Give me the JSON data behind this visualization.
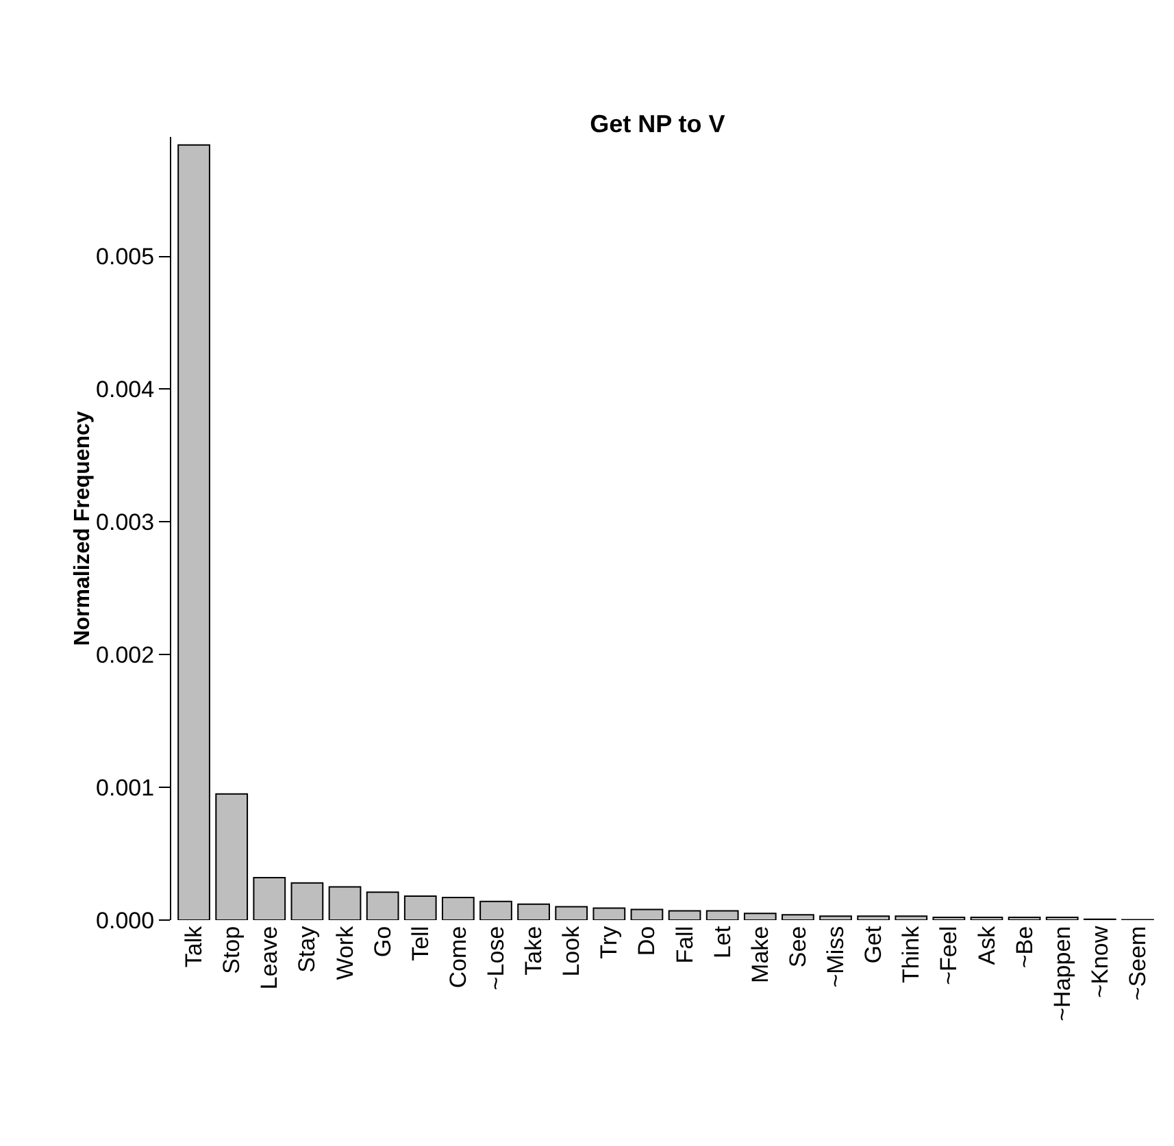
{
  "chart_data": {
    "type": "bar",
    "title": "Get NP to V",
    "ylabel": "Normalized Frequency",
    "categories": [
      "Talk",
      "Stop",
      "Leave",
      "Stay",
      "Work",
      "Go",
      "Tell",
      "Come",
      "~Lose",
      "Take",
      "Look",
      "Try",
      "Do",
      "Fall",
      "Let",
      "Make",
      "See",
      "~Miss",
      "Get",
      "Think",
      "~Feel",
      "Ask",
      "~Be",
      "~Happen",
      "~Know",
      "~Seem"
    ],
    "values": [
      0.00584,
      0.00095,
      0.00032,
      0.00028,
      0.00025,
      0.00021,
      0.00018,
      0.00017,
      0.00014,
      0.00012,
      0.0001,
      9e-05,
      8e-05,
      7e-05,
      7e-05,
      5e-05,
      4e-05,
      3e-05,
      3e-05,
      3e-05,
      2e-05,
      2e-05,
      2e-05,
      2e-05,
      6e-06,
      3e-06
    ],
    "color": "#bebebe",
    "ylim": [
      0,
      0.0059
    ],
    "yticks": [
      {
        "value": 0,
        "label": "0.000"
      },
      {
        "value": 0.001,
        "label": "0.001"
      },
      {
        "value": 0.002,
        "label": "0.002"
      },
      {
        "value": 0.003,
        "label": "0.003"
      },
      {
        "value": 0.004,
        "label": "0.004"
      },
      {
        "value": 0.005,
        "label": "0.005"
      }
    ]
  }
}
